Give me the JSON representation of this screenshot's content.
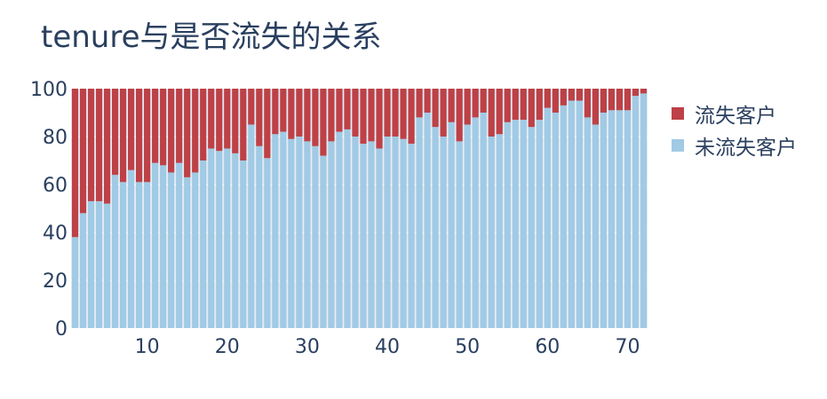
{
  "chart_data": {
    "type": "bar",
    "stacked": true,
    "title": "tenure与是否流失的关系",
    "xlabel": "",
    "ylabel": "",
    "ylim": [
      0,
      100
    ],
    "xlim": [
      0.5,
      72.5
    ],
    "x_ticks": [
      10,
      20,
      30,
      40,
      50,
      60,
      70
    ],
    "y_ticks": [
      0,
      20,
      40,
      60,
      80,
      100
    ],
    "grid": true,
    "legend_position": "right",
    "x": [
      1,
      2,
      3,
      4,
      5,
      6,
      7,
      8,
      9,
      10,
      11,
      12,
      13,
      14,
      15,
      16,
      17,
      18,
      19,
      20,
      21,
      22,
      23,
      24,
      25,
      26,
      27,
      28,
      29,
      30,
      31,
      32,
      33,
      34,
      35,
      36,
      37,
      38,
      39,
      40,
      41,
      42,
      43,
      44,
      45,
      46,
      47,
      48,
      49,
      50,
      51,
      52,
      53,
      54,
      55,
      56,
      57,
      58,
      59,
      60,
      61,
      62,
      63,
      64,
      65,
      66,
      67,
      68,
      69,
      70,
      71,
      72
    ],
    "series": [
      {
        "name": "流失客户",
        "color": "#bd4146",
        "values": [
          62,
          52,
          47,
          47,
          48,
          36,
          39,
          34,
          39,
          39,
          31,
          32,
          35,
          31,
          37,
          35,
          30,
          25,
          26,
          25,
          27,
          30,
          15,
          24,
          29,
          19,
          18,
          21,
          20,
          22,
          24,
          28,
          22,
          18,
          17,
          20,
          23,
          22,
          25,
          20,
          20,
          21,
          23,
          12,
          10,
          16,
          20,
          14,
          22,
          15,
          12,
          10,
          20,
          19,
          14,
          13,
          13,
          16,
          13,
          8,
          10,
          7,
          5,
          5,
          12,
          15,
          10,
          9,
          9,
          9,
          3,
          2
        ]
      },
      {
        "name": "未流失客户",
        "color": "#a1cae4",
        "values": [
          38,
          48,
          53,
          53,
          52,
          64,
          61,
          66,
          61,
          61,
          69,
          68,
          65,
          69,
          63,
          65,
          70,
          75,
          74,
          75,
          73,
          70,
          85,
          76,
          71,
          81,
          82,
          79,
          80,
          78,
          76,
          72,
          78,
          82,
          83,
          80,
          77,
          78,
          75,
          80,
          80,
          79,
          77,
          88,
          90,
          84,
          80,
          86,
          78,
          85,
          88,
          90,
          80,
          81,
          86,
          87,
          87,
          84,
          87,
          92,
          90,
          93,
          95,
          95,
          88,
          85,
          90,
          91,
          91,
          91,
          97,
          98
        ]
      }
    ]
  }
}
